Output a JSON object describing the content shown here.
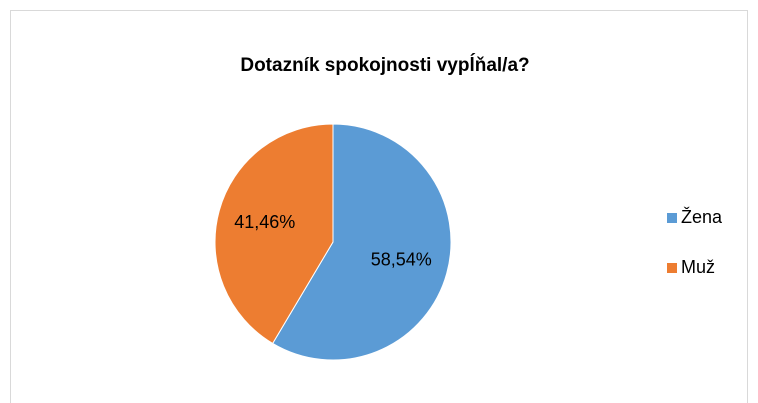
{
  "chart_data": {
    "type": "pie",
    "title": "Dotazník spokojnosti vypĺňal/a?",
    "categories": [
      "Žena",
      "Muž"
    ],
    "values": [
      58.54,
      41.46
    ],
    "value_labels": [
      "58,54%",
      "41,46%"
    ],
    "colors": [
      "#5b9bd5",
      "#ed7d31"
    ],
    "legend": "right"
  }
}
